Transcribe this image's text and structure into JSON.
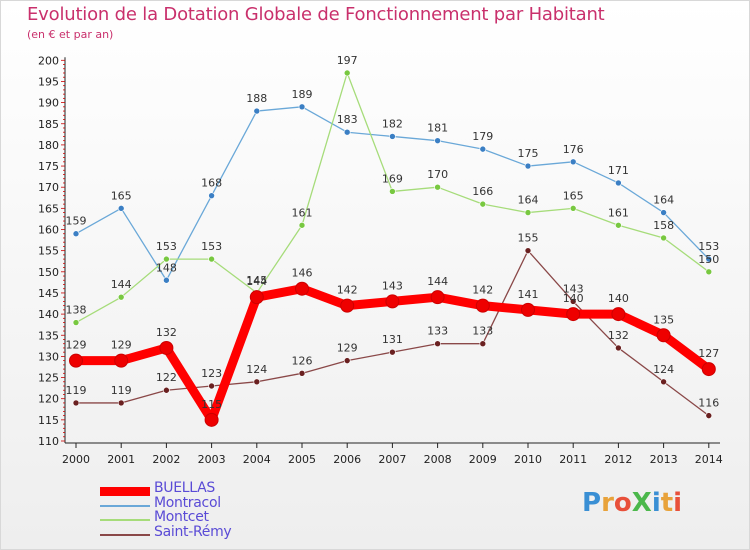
{
  "header": {
    "title": "Evolution de la Dotation Globale de Fonctionnement par Habitant",
    "subtitle": "(en € et par an)"
  },
  "logo": {
    "text": "ProXiti",
    "colors": [
      "#3a8fd4",
      "#e8a23a",
      "#e8503a",
      "#4cb84c",
      "#3a8fd4",
      "#e8a23a",
      "#e8503a"
    ]
  },
  "chart_data": {
    "type": "line",
    "title": "Evolution de la Dotation Globale de Fonctionnement par Habitant",
    "subtitle": "(en € et par an)",
    "categories": [
      "2000",
      "2001",
      "2002",
      "2003",
      "2004",
      "2005",
      "2006",
      "2007",
      "2008",
      "2009",
      "2010",
      "2011",
      "2012",
      "2013",
      "2014"
    ],
    "ylim": [
      110,
      200
    ],
    "yticks": [
      110,
      115,
      120,
      125,
      130,
      135,
      140,
      145,
      150,
      155,
      160,
      165,
      170,
      175,
      180,
      185,
      190,
      195,
      200
    ],
    "grid": false,
    "legend_position": "bottom-left",
    "series": [
      {
        "name": "BUELLAS",
        "color": "#ff0000",
        "marker_color": "#ee0000",
        "bold": true,
        "values": [
          129,
          129,
          132,
          115,
          144,
          146,
          142,
          143,
          144,
          142,
          141,
          140,
          140,
          135,
          127
        ]
      },
      {
        "name": "Montracol",
        "color": "#6aa8d8",
        "marker_color": "#3b7fc4",
        "bold": false,
        "values": [
          159,
          165,
          148,
          168,
          188,
          189,
          183,
          182,
          181,
          179,
          175,
          176,
          171,
          164,
          153
        ]
      },
      {
        "name": "Montcet",
        "color": "#a6dc7a",
        "marker_color": "#78c840",
        "bold": false,
        "values": [
          138,
          144,
          153,
          153,
          145,
          161,
          197,
          169,
          170,
          166,
          164,
          165,
          161,
          158,
          150
        ]
      },
      {
        "name": "Saint-Rémy",
        "color": "#8a4848",
        "marker_color": "#6a2020",
        "bold": false,
        "values": [
          119,
          119,
          122,
          123,
          124,
          126,
          129,
          131,
          133,
          133,
          155,
          143,
          132,
          124,
          116
        ]
      }
    ],
    "data_labels": {
      "BUELLAS": [
        "129",
        "129",
        "132",
        "115",
        "144",
        "146",
        "142",
        "143",
        "144",
        "142",
        "141",
        "140",
        "140",
        "135",
        "127"
      ],
      "Montracol": [
        "159",
        "165",
        "148",
        "168",
        "188",
        "189",
        "183",
        "182",
        "181",
        "179",
        "175",
        "176",
        "171",
        "164",
        "153"
      ],
      "Montcet": [
        "138",
        "144",
        "153",
        "153",
        "145",
        "161",
        "197",
        "169",
        "170",
        "166",
        "164",
        "165",
        "161",
        "158",
        "150"
      ],
      "Saint-Rémy": [
        "119",
        "119",
        "122",
        "123",
        "124",
        "126",
        "129",
        "131",
        "133",
        "133",
        "155",
        "143",
        "132",
        "124",
        "116"
      ]
    }
  }
}
